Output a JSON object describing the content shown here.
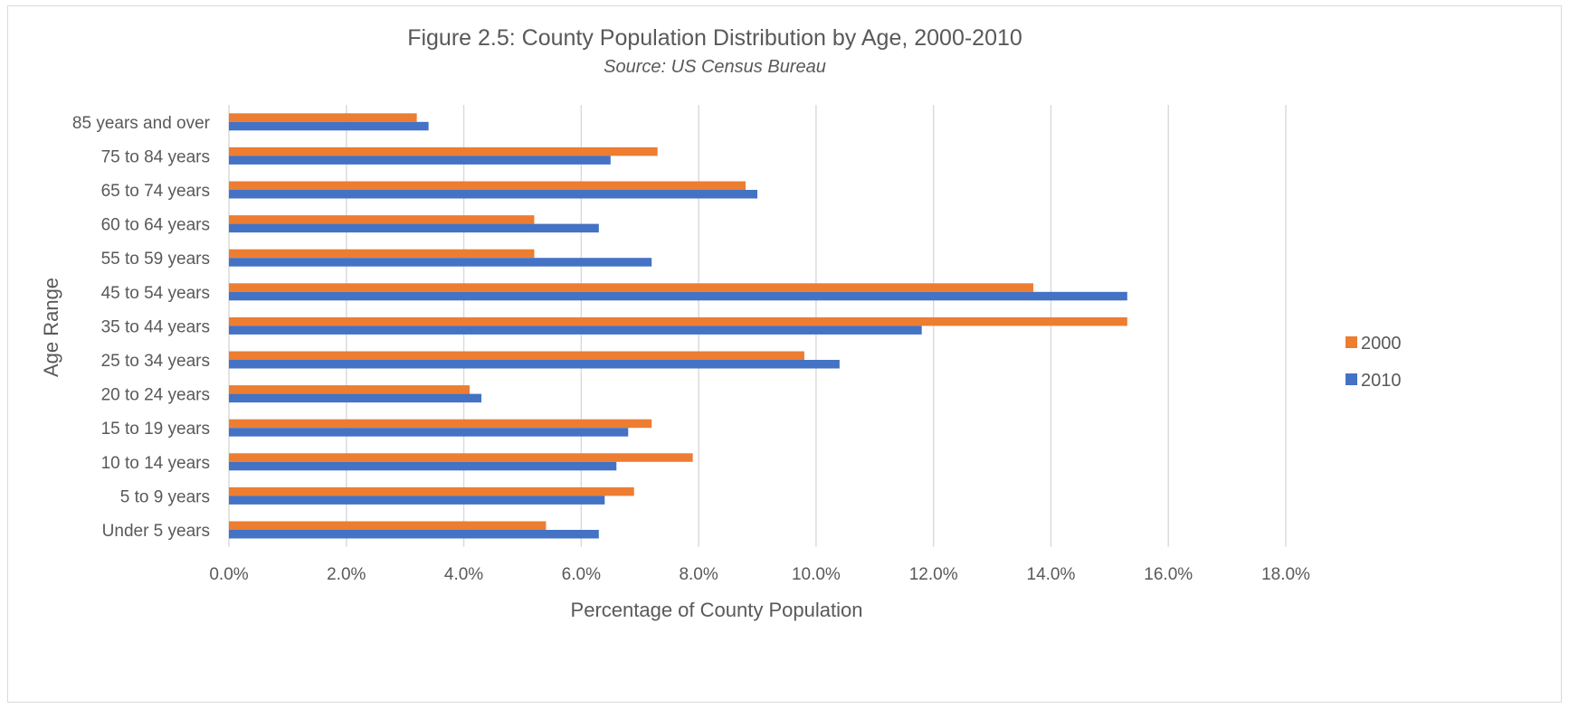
{
  "chart_data": {
    "type": "bar",
    "orientation": "horizontal",
    "title": "Figure 2.5: County Population Distribution by Age, 2000-2010",
    "subtitle": "Source: US Census Bureau",
    "xlabel": "Percentage of County Population",
    "ylabel": "Age Range",
    "categories": [
      "85 years and over",
      "75 to 84 years",
      "65 to 74 years",
      "60 to 64 years",
      "55 to 59 years",
      "45 to 54 years",
      "35 to 44 years",
      "25 to 34 years",
      "20 to 24 years",
      "15 to 19 years",
      "10 to 14 years",
      "5 to 9 years",
      "Under 5 years"
    ],
    "series": [
      {
        "name": "2000",
        "color": "#ED7D31",
        "values": [
          3.2,
          7.3,
          8.8,
          5.2,
          5.2,
          13.7,
          15.3,
          9.8,
          4.1,
          7.2,
          7.9,
          6.9,
          5.4
        ]
      },
      {
        "name": "2010",
        "color": "#4472C4",
        "values": [
          3.4,
          6.5,
          9.0,
          6.3,
          7.2,
          15.3,
          11.8,
          10.4,
          4.3,
          6.8,
          6.6,
          6.4,
          6.3
        ]
      }
    ],
    "xlim": [
      0,
      18
    ],
    "x_ticks": [
      0,
      2,
      4,
      6,
      8,
      10,
      12,
      14,
      16,
      18
    ],
    "x_tick_labels": [
      "0.0%",
      "2.0%",
      "4.0%",
      "6.0%",
      "8.0%",
      "10.0%",
      "12.0%",
      "14.0%",
      "16.0%",
      "18.0%"
    ],
    "grid": "vertical",
    "legend_position": "right",
    "gridline_color": "#d9d9d9",
    "text_color": "#595959"
  }
}
